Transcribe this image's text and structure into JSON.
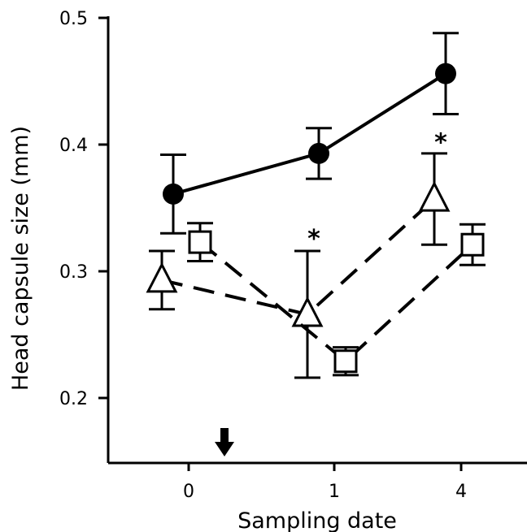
{
  "chart_data": {
    "type": "line",
    "title": "",
    "xlabel": "Sampling date",
    "ylabel": "Head capsule size (mm)",
    "categories": [
      "0",
      "1",
      "4"
    ],
    "yticks": [
      "0.2",
      "0.3",
      "0.4",
      "0.5"
    ],
    "ylim": [
      0.15,
      0.5
    ],
    "grid": false,
    "series": [
      {
        "marker": "circle-filled",
        "line": "solid",
        "values": [
          0.361,
          0.393,
          0.456
        ],
        "errors": [
          0.031,
          0.02,
          0.032
        ]
      },
      {
        "marker": "triangle-open",
        "line": "dashed",
        "values": [
          0.293,
          0.266,
          0.357
        ],
        "errors": [
          0.023,
          0.05,
          0.036
        ]
      },
      {
        "marker": "square-open",
        "line": "dashed",
        "values": [
          0.323,
          0.229,
          0.321
        ],
        "errors": [
          0.015,
          0.011,
          0.016
        ]
      }
    ],
    "annotations": [
      {
        "text": "*",
        "category": "1",
        "y": 0.332
      },
      {
        "text": "*",
        "category": "4",
        "y": 0.408
      }
    ],
    "marker_arrow": {
      "icon": "down-arrow-icon",
      "between": [
        "0",
        "1"
      ]
    }
  }
}
